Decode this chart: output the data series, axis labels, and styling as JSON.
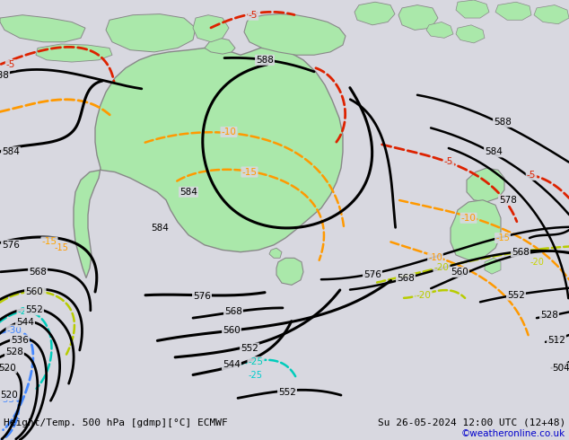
{
  "title_left": "Height/Temp. 500 hPa [gdmp][°C] ECMWF",
  "title_right": "Su 26-05-2024 12:00 UTC (12+48)",
  "credit": "©weatheronline.co.uk",
  "bg_color": "#d8d8e0",
  "land_color": "#aae8aa",
  "land_edge_color": "#888888",
  "credit_color": "#0000cc"
}
